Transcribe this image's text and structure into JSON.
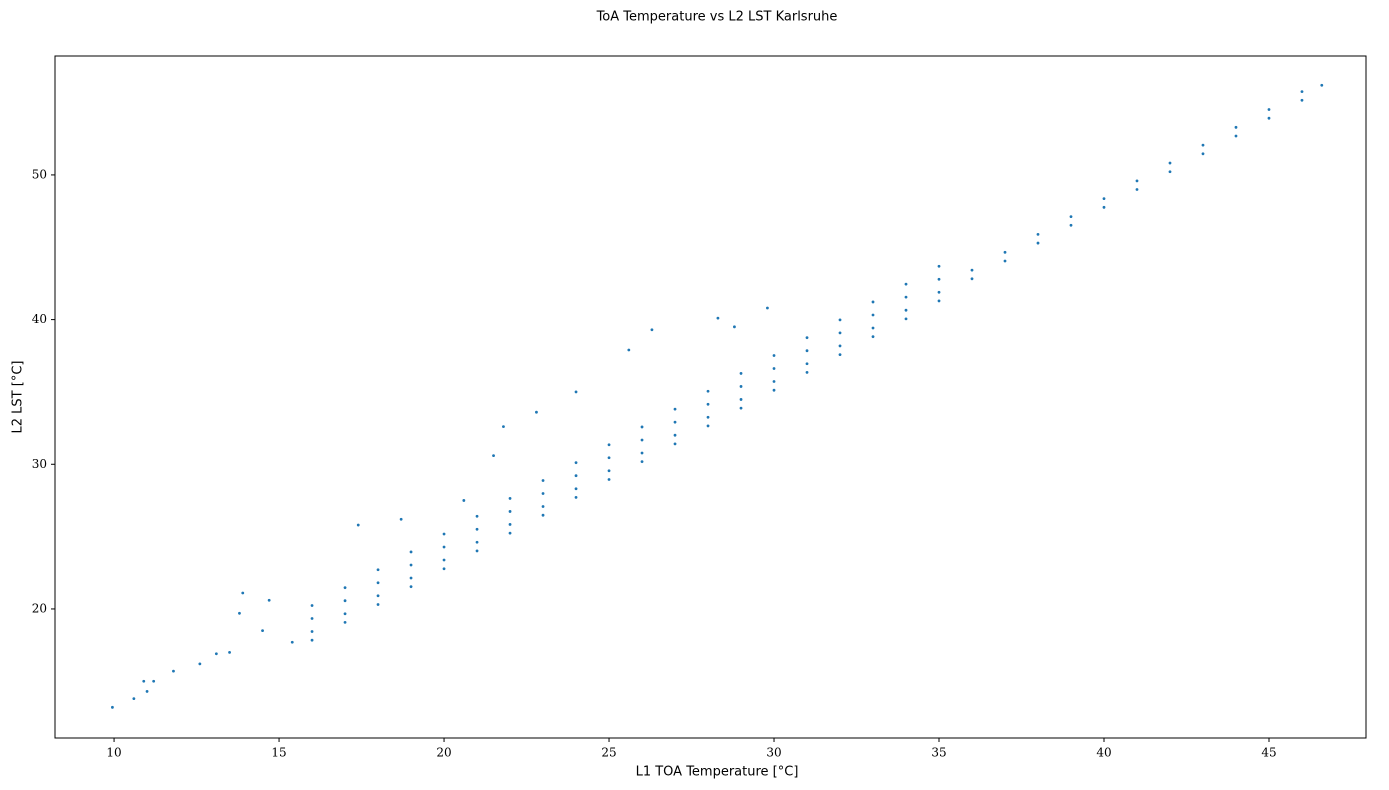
{
  "chart_data": {
    "type": "scatter",
    "title": "ToA Temperature vs L2 LST Karlsruhe",
    "x_label": "L1 TOA Temperature [°C]",
    "y_label": "L2 LST [°C]",
    "color": "#1f77b4",
    "xlim": [
      8.21,
      47.94
    ],
    "xticks": [
      10,
      15,
      20,
      25,
      30,
      35,
      40,
      45
    ],
    "ylim": [
      11.08,
      58.22
    ],
    "yticks": [
      20,
      30,
      40,
      50
    ],
    "grid": false,
    "x": [
      15.4,
      16,
      16,
      16,
      16,
      17,
      17,
      17,
      17,
      18,
      18,
      18,
      18,
      19,
      19,
      19,
      19,
      20,
      20,
      20,
      20,
      21,
      21,
      21,
      21,
      22,
      22,
      22,
      22,
      23,
      23,
      23,
      23,
      24,
      24,
      24,
      24,
      25,
      25,
      25,
      25,
      26,
      26,
      26,
      26,
      27,
      27,
      27,
      27,
      28,
      28,
      28,
      28,
      29,
      29,
      29,
      29,
      30,
      30,
      30,
      30,
      31,
      31,
      31,
      31,
      32,
      32,
      32,
      32,
      33,
      33,
      33,
      33,
      34,
      34,
      34,
      34,
      35,
      35,
      35,
      35,
      36,
      36,
      37,
      37,
      38,
      38,
      39,
      39,
      40,
      40,
      41,
      41,
      42,
      42,
      43,
      43,
      44,
      44,
      45,
      45,
      46,
      46,
      46.6,
      9.95,
      10.6,
      10.9,
      11.2,
      11,
      11.8,
      12.6,
      13.1,
      13.5,
      13.8,
      13.9,
      14.5,
      14.7,
      17.4,
      18.7,
      20.6,
      21.5,
      21.8,
      22.8,
      24,
      25.6,
      26.3,
      28.3,
      29.8,
      28.8
    ],
    "values": [
      17.7,
      17.84,
      18.44,
      19.34,
      20.24,
      19.07,
      19.67,
      20.57,
      21.47,
      20.31,
      20.91,
      21.81,
      22.71,
      21.54,
      22.14,
      23.04,
      23.94,
      22.78,
      23.38,
      24.28,
      25.18,
      24.01,
      24.61,
      25.51,
      26.41,
      25.24,
      25.84,
      26.74,
      27.64,
      26.48,
      27.08,
      27.98,
      28.88,
      27.71,
      28.31,
      29.21,
      30.11,
      28.95,
      29.55,
      30.45,
      31.35,
      30.18,
      30.78,
      31.68,
      32.58,
      31.41,
      32.01,
      32.91,
      33.81,
      32.65,
      33.25,
      34.15,
      35.05,
      33.88,
      34.48,
      35.38,
      36.28,
      35.12,
      35.72,
      36.62,
      37.52,
      36.35,
      36.95,
      37.85,
      38.75,
      37.58,
      38.18,
      39.08,
      39.98,
      38.82,
      39.42,
      40.32,
      41.22,
      40.05,
      40.65,
      41.55,
      42.45,
      41.29,
      41.89,
      42.79,
      43.69,
      42.82,
      43.42,
      44.05,
      44.65,
      45.29,
      45.89,
      46.52,
      47.12,
      47.76,
      48.36,
      48.99,
      49.59,
      50.22,
      50.82,
      51.46,
      52.06,
      52.69,
      53.29,
      53.92,
      54.52,
      55.16,
      55.76,
      56.2,
      13.2,
      13.8,
      15,
      15,
      14.3,
      15.7,
      16.2,
      16.9,
      17,
      19.7,
      21.1,
      18.5,
      20.6,
      25.8,
      26.2,
      27.5,
      30.6,
      32.6,
      33.6,
      35,
      37.9,
      39.3,
      40.1,
      40.8,
      39.5
    ]
  }
}
